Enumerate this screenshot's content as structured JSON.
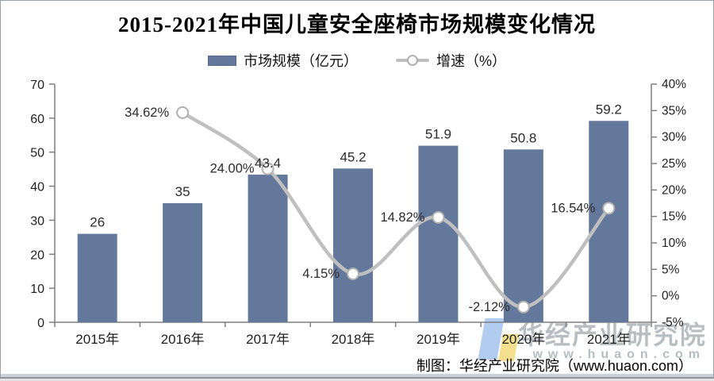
{
  "header": {
    "title": "2015-2021年中国儿童安全座椅市场规模变化情况"
  },
  "legend": {
    "market_size_label": "市场规模（亿元）",
    "growth_label": "增速（%）"
  },
  "chart_data": {
    "type": "combo-bar-line",
    "title": "2015-2021年中国儿童安全座椅市场规模变化情况",
    "categories": [
      "2015年",
      "2016年",
      "2017年",
      "2018年",
      "2019年",
      "2020年",
      "2021年"
    ],
    "series": [
      {
        "name": "市场规模（亿元）",
        "type": "bar",
        "axis": "left",
        "color": "#64789b",
        "values": [
          26,
          35,
          43.4,
          45.2,
          51.9,
          50.8,
          59.2
        ],
        "labels": [
          "26",
          "35",
          "43.4",
          "45.2",
          "51.9",
          "50.8",
          "59.2"
        ]
      },
      {
        "name": "增速（%）",
        "type": "line",
        "axis": "right",
        "color": "#bfbfbf",
        "marker_fill": "#ffffff",
        "marker_stroke": "#b0b0b0",
        "values": [
          null,
          34.62,
          24.0,
          4.15,
          14.82,
          -2.12,
          16.54
        ],
        "labels": [
          null,
          "34.62%",
          "24.00%",
          "4.15%",
          "14.82%",
          "-2.12%",
          "16.54%"
        ]
      }
    ],
    "left_axis": {
      "min": 0,
      "max": 70,
      "step": 10,
      "tick_labels": [
        "0",
        "10",
        "20",
        "30",
        "40",
        "50",
        "60",
        "70"
      ]
    },
    "right_axis": {
      "min": -5,
      "max": 40,
      "step": 5,
      "tick_labels": [
        "-5%",
        "0%",
        "5%",
        "10%",
        "15%",
        "20%",
        "25%",
        "30%",
        "35%",
        "40%"
      ]
    },
    "grid": false,
    "legend_position": "top",
    "axis_color": "#7f7f7f",
    "label_color": "#2b2b2b"
  },
  "watermark": {
    "brand": "华经产业研究院",
    "url": "www.huaon.com"
  },
  "footer": {
    "credit": "制图：华经产业研究院（www.huaon.com）"
  }
}
